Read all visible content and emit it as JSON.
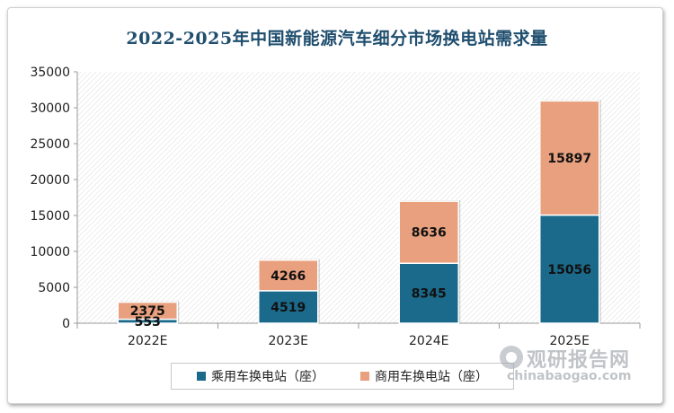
{
  "chart_data": {
    "type": "bar",
    "stacked": true,
    "title": "2022-2025年中国新能源汽车细分市场换电站需求量",
    "categories": [
      "2022E",
      "2023E",
      "2024E",
      "2025E"
    ],
    "series": [
      {
        "name": "乘用车换电站（座）",
        "values": [
          553,
          4519,
          8345,
          15056
        ],
        "color": "#1b6a8c"
      },
      {
        "name": "商用车换电站（座）",
        "values": [
          2375,
          4266,
          8636,
          15897
        ],
        "color": "#e8a07f"
      }
    ],
    "y_ticks": [
      "0",
      "5000",
      "10000",
      "15000",
      "20000",
      "25000",
      "30000",
      "35000"
    ],
    "ylim": [
      0,
      35000
    ],
    "grid": false,
    "legend_position": "bottom"
  },
  "watermark": {
    "brand": "观研报告网",
    "site": "chinabaogao.com"
  }
}
